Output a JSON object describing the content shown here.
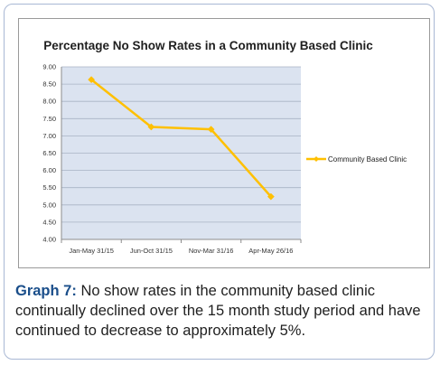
{
  "chart_data": {
    "type": "line",
    "title": "Percentage No Show Rates in a Community Based Clinic",
    "xlabel": "",
    "ylabel": "",
    "categories": [
      "Jan-May 31/15",
      "Jun-Oct 31/15",
      "Nov-Mar 31/16",
      "Apr-May 26/16"
    ],
    "series": [
      {
        "name": "Community Based Clinic",
        "values": [
          8.63,
          7.26,
          7.19,
          5.24
        ],
        "color": "#ffc000"
      }
    ],
    "ylim": [
      4.0,
      9.0
    ],
    "yticks": [
      "4.00",
      "4.50",
      "5.00",
      "5.50",
      "6.00",
      "6.50",
      "7.00",
      "7.50",
      "8.00",
      "8.50",
      "9.00"
    ],
    "grid": true,
    "legend_position": "right",
    "plot_background": "#dbe3f0",
    "grid_color": "#a8b3c4"
  },
  "caption": {
    "label": "Graph 7:",
    "text": " No show rates in the community based clinic continually declined over the 15 month study period and have continued to decrease to approximately 5%."
  }
}
